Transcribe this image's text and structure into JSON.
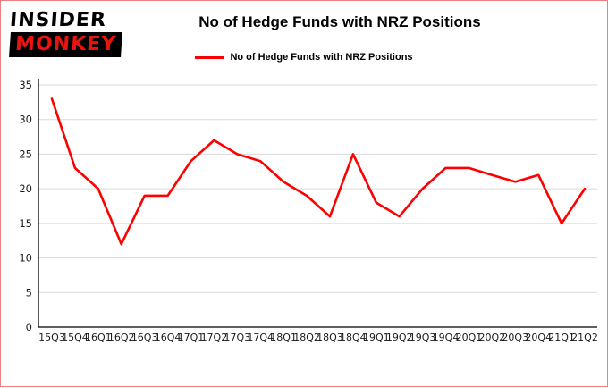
{
  "brand": {
    "line1": "INSIDER",
    "line2": "MONKEY"
  },
  "header": {
    "title": "No of Hedge Funds with NRZ Positions"
  },
  "legend": {
    "label": "No of Hedge Funds with NRZ Positions"
  },
  "colors": {
    "line": "#ff0000",
    "grid": "#d9d9d9",
    "axis": "#000000",
    "border": "#f08080",
    "logo_red": "#e8140f",
    "logo_black": "#000000"
  },
  "chart_data": {
    "type": "line",
    "title": "No of Hedge Funds with NRZ Positions",
    "legend": [
      "No of Hedge Funds with NRZ Positions"
    ],
    "legend_position": "top",
    "grid": true,
    "xlabel": "",
    "ylabel": "",
    "ylim": [
      0,
      35
    ],
    "ytick": 5,
    "categories": [
      "15Q3",
      "15Q4",
      "16Q1",
      "16Q2",
      "16Q3",
      "16Q4",
      "17Q1",
      "17Q2",
      "17Q3",
      "17Q4",
      "18Q1",
      "18Q2",
      "18Q3",
      "18Q4",
      "19Q1",
      "19Q2",
      "19Q3",
      "19Q4",
      "20Q1",
      "20Q2",
      "20Q3",
      "20Q4",
      "21Q1",
      "21Q2"
    ],
    "values": [
      33,
      23,
      20,
      12,
      19,
      19,
      24,
      27,
      25,
      24,
      21,
      19,
      16,
      25,
      18,
      16,
      20,
      23,
      23,
      22,
      21,
      22,
      15,
      20
    ]
  }
}
